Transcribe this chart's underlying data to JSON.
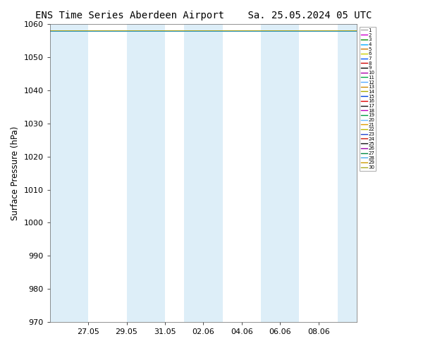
{
  "title_left": "ENS Time Series Aberdeen Airport",
  "title_right": "Sa. 25.05.2024 05 UTC",
  "ylabel": "Surface Pressure (hPa)",
  "ylim": [
    970,
    1060
  ],
  "yticks": [
    970,
    980,
    990,
    1000,
    1010,
    1020,
    1030,
    1040,
    1050,
    1060
  ],
  "x_start": "2024-05-25",
  "x_end": "2024-06-10",
  "xtick_labels": [
    "27.05",
    "29.05",
    "31.05",
    "02.06",
    "04.06",
    "06.06",
    "08.06"
  ],
  "xtick_dates": [
    "2024-05-27",
    "2024-05-29",
    "2024-05-31",
    "2024-06-02",
    "2024-06-04",
    "2024-06-06",
    "2024-06-08"
  ],
  "background_color": "#ffffff",
  "plot_bg_color": "#ffffff",
  "shading_color": "#ddeef8",
  "shading_intervals": [
    [
      "2024-05-25",
      "2024-05-27"
    ],
    [
      "2024-05-29",
      "2024-05-31"
    ],
    [
      "2024-06-01",
      "2024-06-03"
    ],
    [
      "2024-06-05",
      "2024-06-07"
    ],
    [
      "2024-06-09",
      "2024-06-11"
    ]
  ],
  "ensemble_colors": [
    "#aaaaaa",
    "#cc00cc",
    "#008800",
    "#00aaff",
    "#cc7700",
    "#cccc00",
    "#0055ff",
    "#cc0000",
    "#000000",
    "#aa00aa",
    "#00aa44",
    "#55aaff",
    "#cc8800",
    "#aaaa00",
    "#0044dd",
    "#dd0000",
    "#111111",
    "#bb00bb",
    "#009944",
    "#66bbff",
    "#dd9900",
    "#bbbb00",
    "#2244cc",
    "#cc1100",
    "#111111",
    "#9900aa",
    "#008844",
    "#44aaee",
    "#cc9900",
    "#aaaa22"
  ],
  "n_members": 30,
  "pressure_value": 1058.0,
  "legend_fontsize": 5.0,
  "title_fontsize": 10.0,
  "tick_fontsize": 8.0,
  "ylabel_fontsize": 8.5,
  "line_lw": 0.6
}
